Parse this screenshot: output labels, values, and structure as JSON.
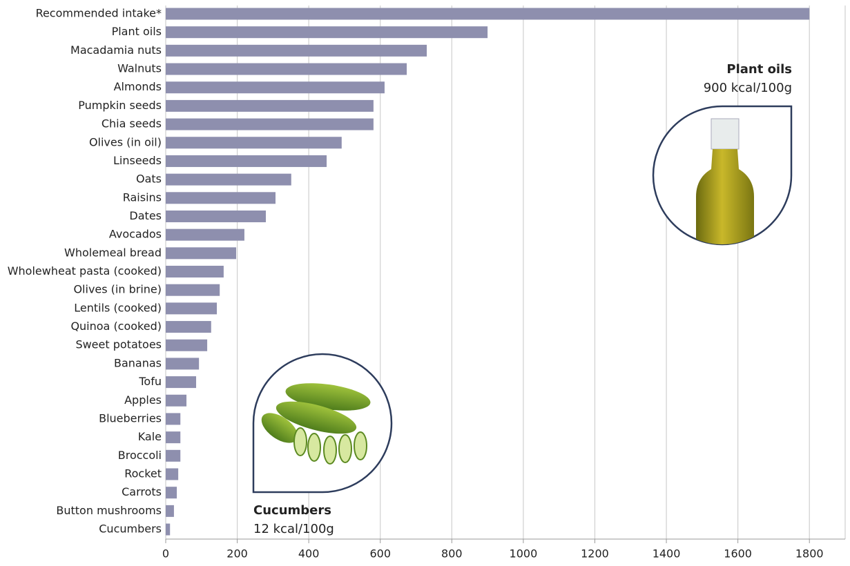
{
  "chart_data": {
    "type": "bar",
    "orientation": "horizontal",
    "categories": [
      "Recommended intake*",
      "Plant oils",
      "Macadamia nuts",
      "Walnuts",
      "Almonds",
      "Pumpkin seeds",
      "Chia seeds",
      "Olives (in oil)",
      "Linseeds",
      "Oats",
      "Raisins",
      "Dates",
      "Avocados",
      "Wholemeal bread",
      "Wholewheat pasta (cooked)",
      "Olives (in brine)",
      "Lentils (cooked)",
      "Quinoa (cooked)",
      "Sweet potatoes",
      "Bananas",
      "Tofu",
      "Apples",
      "Blueberries",
      "Kale",
      "Broccoli",
      "Rocket",
      "Carrots",
      "Button mushrooms",
      "Cucumbers"
    ],
    "values": [
      1800,
      900,
      730,
      674,
      612,
      581,
      581,
      492,
      450,
      351,
      307,
      280,
      220,
      197,
      162,
      151,
      143,
      127,
      116,
      93,
      85,
      58,
      41,
      41,
      41,
      35,
      31,
      23,
      12
    ],
    "color": "#8e8fae",
    "xlim": [
      0,
      1900
    ],
    "xticks": [
      0,
      200,
      400,
      600,
      800,
      1000,
      1200,
      1400,
      1600,
      1800
    ],
    "grid": true,
    "annotations": [
      {
        "title": "Plant oils",
        "text": "900 kcal/100g"
      },
      {
        "title": "Cucumbers",
        "text": "12 kcal/100g"
      }
    ]
  }
}
